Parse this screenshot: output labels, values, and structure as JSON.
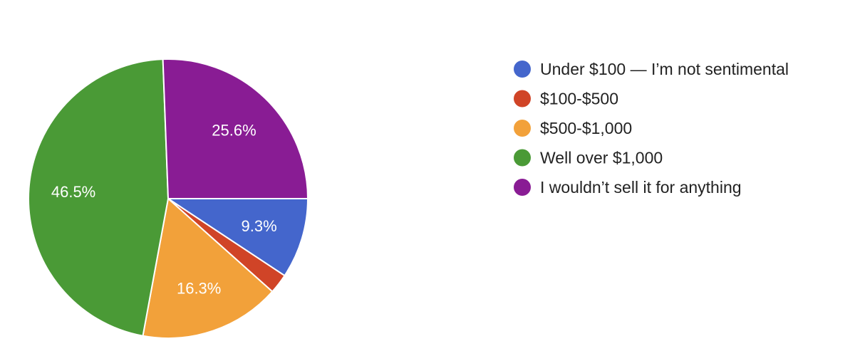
{
  "chart_data": {
    "type": "pie",
    "title": "",
    "start_angle_deg": 90,
    "direction": "clockwise",
    "legend_placement": "right",
    "slices": [
      {
        "label": "Under $100 — I’m not sentimental",
        "value": 9.3,
        "value_label": "9.3%",
        "color": "#4466cc"
      },
      {
        "label": "$100-$500",
        "value": 2.3,
        "value_label": "",
        "color": "#d04427"
      },
      {
        "label": "$500-$1,000",
        "value": 16.3,
        "value_label": "16.3%",
        "color": "#f2a13a"
      },
      {
        "label": "Well over $1,000",
        "value": 46.5,
        "value_label": "46.5%",
        "color": "#4a9a36"
      },
      {
        "label": "I wouldn’t sell it for anything",
        "value": 25.6,
        "value_label": "25.6%",
        "color": "#891c94"
      }
    ]
  }
}
